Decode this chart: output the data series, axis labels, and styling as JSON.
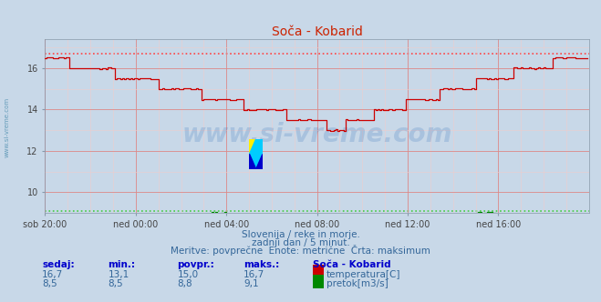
{
  "title": "Soča - Kobarid",
  "bg_color": "#c8d8e8",
  "plot_bg_color": "#c8d8e8",
  "grid_color_major": "#dd8888",
  "grid_color_minor": "#eecccc",
  "xlabel_ticks": [
    "sob 20:00",
    "ned 00:00",
    "ned 04:00",
    "ned 08:00",
    "ned 12:00",
    "ned 16:00"
  ],
  "xlim": [
    0,
    288
  ],
  "ylim": [
    9.0,
    17.4
  ],
  "yticks": [
    10,
    12,
    14,
    16
  ],
  "temp_color": "#cc0000",
  "flow_color": "#008800",
  "max_temp_color": "#ff4444",
  "max_flow_color": "#44cc44",
  "temp_max": 16.7,
  "flow_max": 9.1,
  "subtitle1": "Slovenija / reke in morje.",
  "subtitle2": "zadnji dan / 5 minut.",
  "subtitle3": "Meritve: povprečne  Enote: metrične  Črta: maksimum",
  "table_headers": [
    "sedaj:",
    "min.:",
    "povpr.:",
    "maks.:",
    "Soča - Kobarid"
  ],
  "temp_row": [
    "16,7",
    "13,1",
    "15,0",
    "16,7",
    "temperatura[C]"
  ],
  "flow_row": [
    "8,5",
    "8,5",
    "8,8",
    "9,1",
    "pretok[m3/s]"
  ],
  "watermark": "www.si-vreme.com",
  "watermark_color": "#1a5fb4",
  "side_label": "www.si-vreme.com",
  "side_label_color": "#4488aa",
  "text_color": "#336699",
  "header_color": "#0000cc",
  "title_color": "#cc2200"
}
